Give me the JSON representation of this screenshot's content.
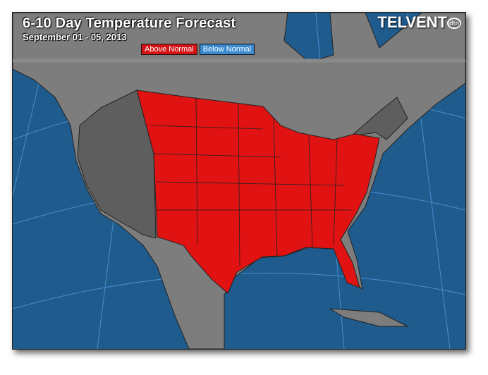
{
  "header": {
    "title": "6-10 Day Temperature Forecast",
    "subtitle": "September 01 - 05, 2013",
    "logo": "TELVENT",
    "logo_badge": "dtn"
  },
  "legend": {
    "items": [
      {
        "label": "Above Normal",
        "color": "#d41414"
      },
      {
        "label": "Below Normal",
        "color": "#3a8ad0"
      }
    ]
  },
  "colors": {
    "ocean": "#1f5b8c",
    "land": "#7d7d7d",
    "above_normal": "#e01212",
    "neutral_states": "#5e5e5e",
    "graticule": "#4a8ed0"
  }
}
